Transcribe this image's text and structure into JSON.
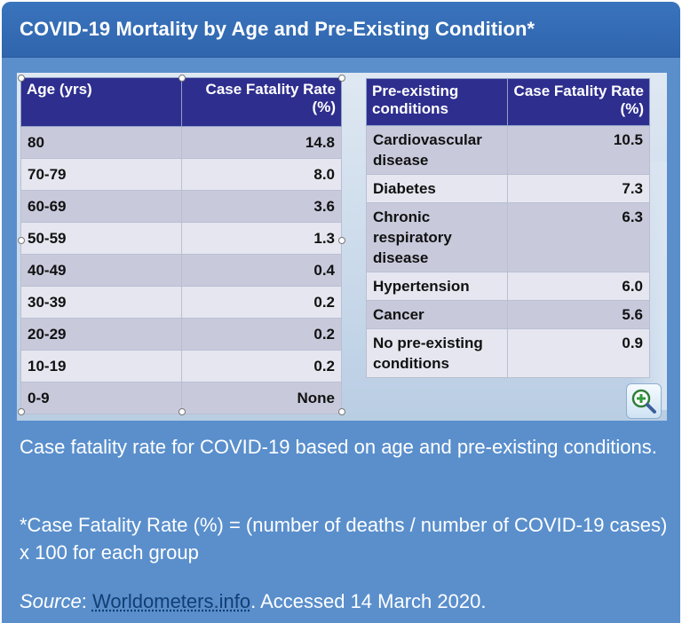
{
  "header": {
    "title": "COVID-19 Mortality by Age and Pre-Existing Condition*"
  },
  "age_table": {
    "headers": [
      "Age (yrs)",
      "Case Fatality Rate (%)"
    ],
    "rows": [
      {
        "age": "80",
        "rate": "14.8"
      },
      {
        "age": "70-79",
        "rate": "8.0"
      },
      {
        "age": "60-69",
        "rate": "3.6"
      },
      {
        "age": "50-59",
        "rate": "1.3"
      },
      {
        "age": "40-49",
        "rate": "0.4"
      },
      {
        "age": "30-39",
        "rate": "0.2"
      },
      {
        "age": "20-29",
        "rate": "0.2"
      },
      {
        "age": "10-19",
        "rate": "0.2"
      },
      {
        "age": "0-9",
        "rate": "None"
      }
    ]
  },
  "condition_table": {
    "headers": [
      "Pre-existing conditions",
      "Case Fatality Rate (%)"
    ],
    "rows": [
      {
        "condition": "Cardiovascular disease",
        "rate": "10.5"
      },
      {
        "condition": "Diabetes",
        "rate": "7.3"
      },
      {
        "condition": "Chronic respiratory disease",
        "rate": "6.3"
      },
      {
        "condition": "Hypertension",
        "rate": "6.0"
      },
      {
        "condition": "Cancer",
        "rate": "5.6"
      },
      {
        "condition": "No pre-existing conditions",
        "rate": "0.9"
      }
    ]
  },
  "zoom": {
    "icon": "zoom-in-icon"
  },
  "caption": "Case fatality rate for COVID-19 based on age and pre-existing conditions.",
  "footnote": "*Case Fatality Rate (%) = (number of deaths / number of COVID-19 cases) x 100 for each group",
  "source": {
    "label": "Source",
    "separator": ": ",
    "link_text": "Worldometers.info",
    "suffix": ". Accessed 14 March 2020."
  },
  "colors": {
    "panel": "#5a8fcc",
    "header": "#3a74bd",
    "table_header": "#2e2e8f",
    "row_dark": "#c8cadc",
    "row_light": "#e5e6ef",
    "link": "#123e73"
  }
}
